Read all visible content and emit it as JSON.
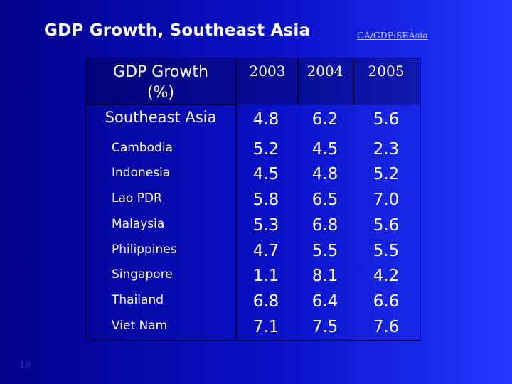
{
  "slide": {
    "title": "GDP Growth, Southeast Asia",
    "reference": "CA/GDP:SEAsia",
    "page_number": "10"
  },
  "table": {
    "header_label_line1": "GDP Growth",
    "header_label_line2": "(%)",
    "years": [
      "2003",
      "2004",
      "2005"
    ],
    "region": {
      "name": "Southeast Asia",
      "values": [
        "4.8",
        "6.2",
        "5.6"
      ]
    },
    "countries": [
      {
        "name": "Cambodia",
        "values": [
          "5.2",
          "4.5",
          "2.3"
        ]
      },
      {
        "name": "Indonesia",
        "values": [
          "4.5",
          "4.8",
          "5.2"
        ]
      },
      {
        "name": "Lao PDR",
        "values": [
          "5.8",
          "6.5",
          "7.0"
        ]
      },
      {
        "name": "Malaysia",
        "values": [
          "5.3",
          "6.8",
          "5.6"
        ]
      },
      {
        "name": "Philippines",
        "values": [
          "4.7",
          "5.5",
          "5.5"
        ]
      },
      {
        "name": "Singapore",
        "values": [
          "1.1",
          "8.1",
          "4.2"
        ]
      },
      {
        "name": "Thailand",
        "values": [
          "6.8",
          "6.4",
          "6.6"
        ]
      },
      {
        "name": "Viet Nam",
        "values": [
          "7.1",
          "7.5",
          "7.6"
        ]
      }
    ]
  },
  "colors": {
    "background_left": "#01018a",
    "background_right": "#2438ff",
    "text": "#ffffff"
  }
}
